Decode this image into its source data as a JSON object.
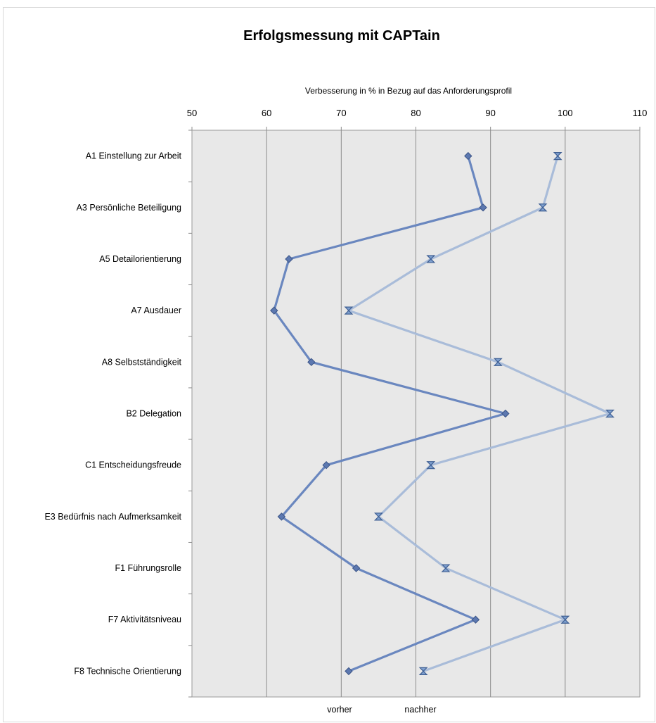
{
  "chart_data": {
    "type": "line",
    "orientation": "horizontal",
    "title": "Erfolgsmessung mit CAPTain",
    "xlabel": "Verbesserung in % in Bezug auf das Anforderungsprofil",
    "ylabel": "",
    "xlim": [
      50,
      110
    ],
    "xticks": [
      50,
      60,
      70,
      80,
      90,
      100,
      110
    ],
    "grid": "vertical",
    "legend_position": "bottom",
    "categories": [
      "A1 Einstellung zur Arbeit",
      "A3 Persönliche Beteiligung",
      "A5 Detailorientierung",
      "A7 Ausdauer",
      "A8 Selbstständigkeit",
      "B2 Delegation",
      "C1 Entscheidungsfreude",
      "E3 Bedürfnis nach Aufmerksamkeit",
      "F1 Führungsrolle",
      "F7 Aktivitätsniveau",
      "F8 Technische Orientierung"
    ],
    "series": [
      {
        "name": "vorher",
        "color": "#6a87bf",
        "marker": "diamond",
        "values": [
          87,
          89,
          63,
          61,
          66,
          92,
          68,
          62,
          72,
          88,
          71
        ]
      },
      {
        "name": "nachher",
        "color": "#a9bcd9",
        "marker": "bowtie",
        "values": [
          99,
          97,
          82,
          71,
          91,
          106,
          82,
          75,
          84,
          100,
          81
        ]
      }
    ]
  }
}
